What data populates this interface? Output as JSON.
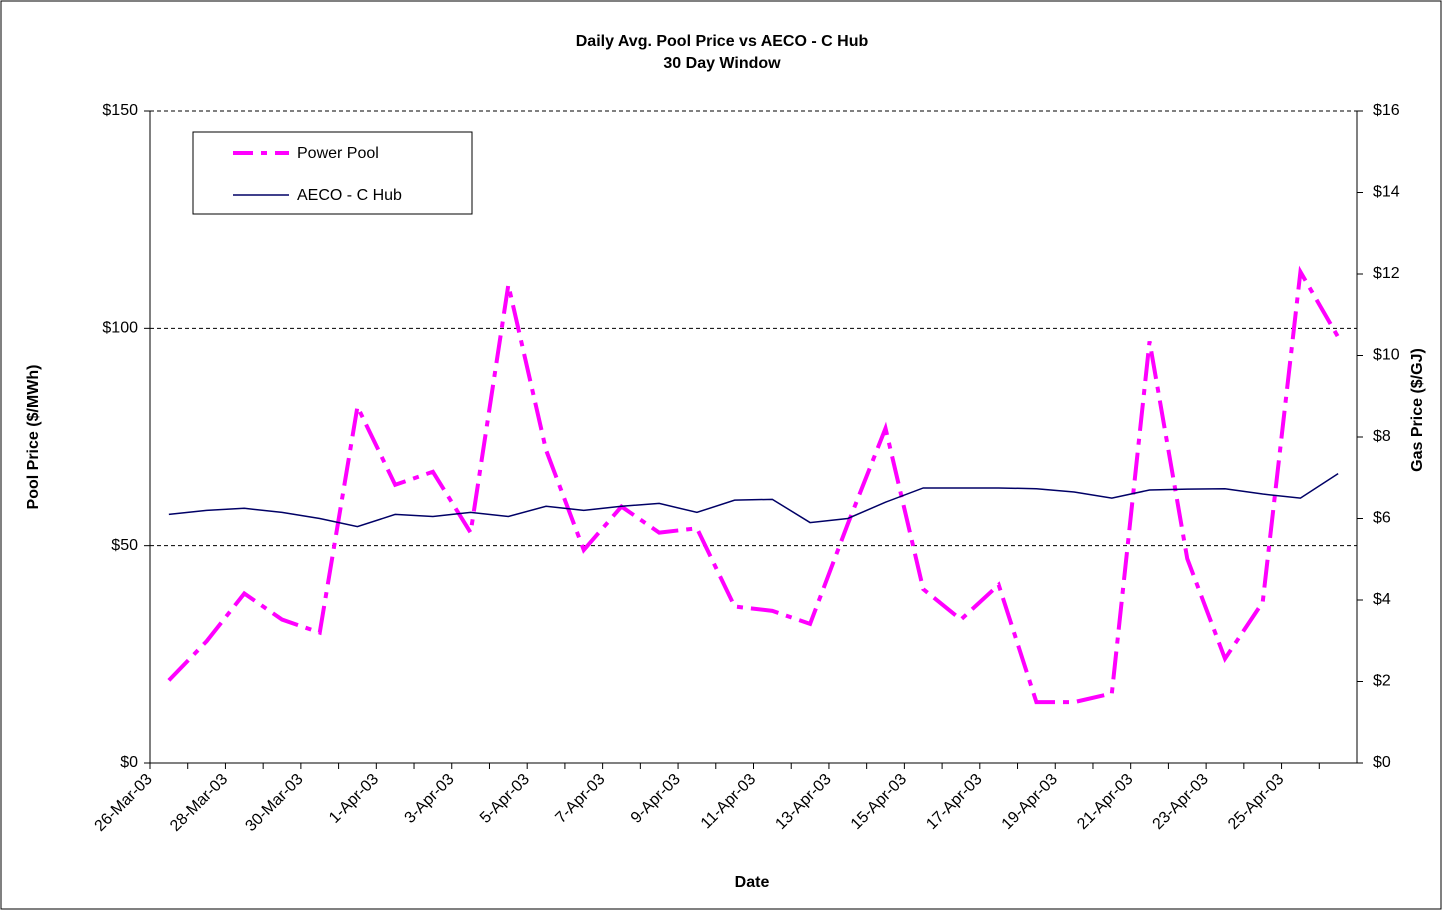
{
  "chart_data": {
    "type": "line",
    "title": "Daily Avg. Pool Price vs AECO - C Hub",
    "subtitle": "30 Day Window",
    "x_label": "Date",
    "y_label": "Pool Price ($/MWh)",
    "y2_label": "Gas Price ($/GJ)",
    "categories": [
      "26-Mar-03",
      null,
      "28-Mar-03",
      null,
      "30-Mar-03",
      null,
      "1-Apr-03",
      null,
      "3-Apr-03",
      null,
      "5-Apr-03",
      null,
      "7-Apr-03",
      null,
      "9-Apr-03",
      null,
      "11-Apr-03",
      null,
      "13-Apr-03",
      null,
      "15-Apr-03",
      null,
      "17-Apr-03",
      null,
      "19-Apr-03",
      null,
      "21-Apr-03",
      null,
      "23-Apr-03",
      null,
      "25-Apr-03",
      null
    ],
    "series": [
      {
        "name": "Power Pool",
        "color": "#ff00ff",
        "dash": true,
        "values": [
          19,
          28,
          39,
          33,
          30,
          82,
          64,
          67,
          53,
          110,
          72,
          49,
          59,
          53,
          54,
          36,
          35,
          32,
          55,
          77,
          40,
          33,
          41,
          14,
          14,
          16,
          97,
          47,
          24,
          37,
          113,
          98
        ]
      },
      {
        "name": "AECO - C Hub",
        "color": "#000066",
        "axis": "y2",
        "values": [
          6.1,
          6.2,
          6.25,
          6.15,
          6.0,
          5.8,
          6.1,
          6.05,
          6.15,
          6.05,
          6.3,
          6.2,
          6.3,
          6.37,
          6.15,
          6.45,
          6.47,
          5.9,
          6.0,
          6.4,
          6.75,
          6.75,
          6.75,
          6.73,
          6.65,
          6.5,
          6.7,
          6.72,
          6.73,
          6.6,
          6.5,
          7.1
        ]
      }
    ],
    "ylim": [
      0,
      150
    ],
    "yticks": [
      {
        "value": 0,
        "label": "$0"
      },
      {
        "value": 50,
        "label": "$50"
      },
      {
        "value": 100,
        "label": "$100"
      },
      {
        "value": 150,
        "label": "$150"
      }
    ],
    "y2lim": [
      0,
      16
    ],
    "y2ticks": [
      {
        "value": 0,
        "label": "$0"
      },
      {
        "value": 2,
        "label": "$2"
      },
      {
        "value": 4,
        "label": "$4"
      },
      {
        "value": 6,
        "label": "$6"
      },
      {
        "value": 8,
        "label": "$8"
      },
      {
        "value": 10,
        "label": "$10"
      },
      {
        "value": 12,
        "label": "$12"
      },
      {
        "value": 14,
        "label": "$14"
      },
      {
        "value": 16,
        "label": "$16"
      }
    ],
    "grid": true,
    "legend": "top-left"
  }
}
